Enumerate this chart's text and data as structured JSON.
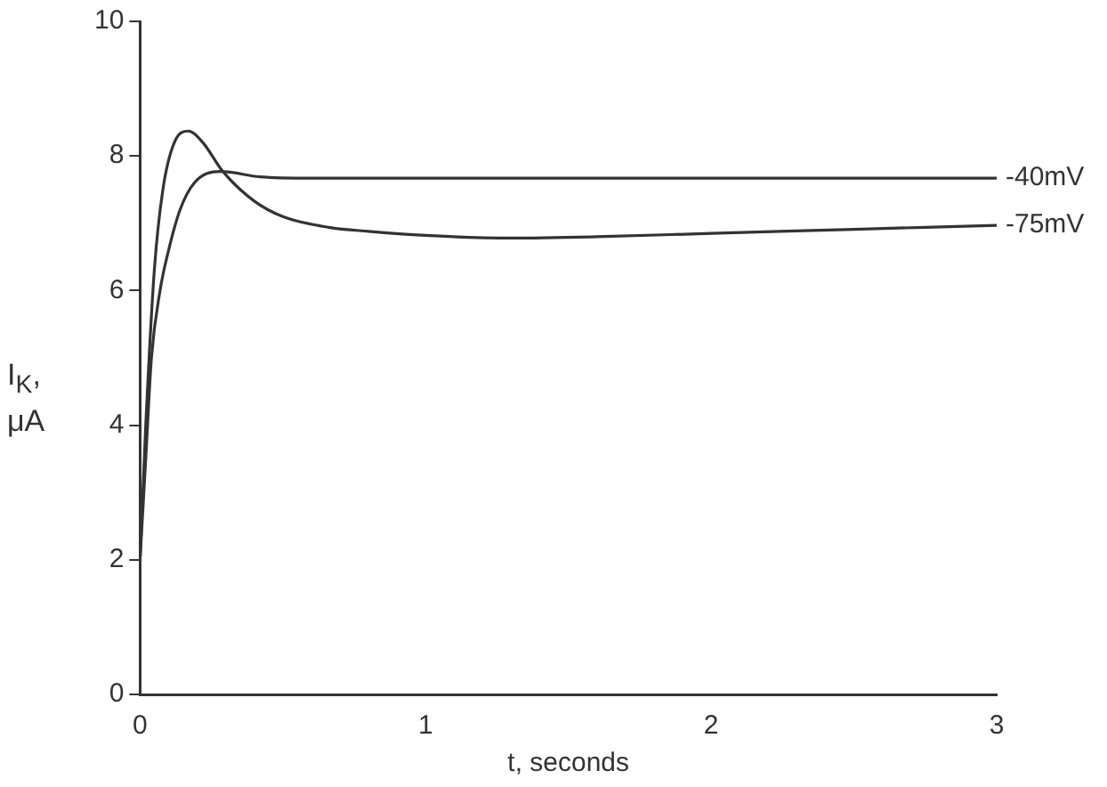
{
  "chart_data": {
    "type": "line",
    "xlabel": "t, seconds",
    "ylabel": "I$_{K}$, μA",
    "xlim": [
      0,
      3
    ],
    "ylim": [
      0,
      10
    ],
    "xticks": [
      0,
      1,
      2,
      3
    ],
    "yticks": [
      0,
      2,
      4,
      6,
      8,
      10
    ],
    "grid": false,
    "legend": false,
    "marker": "none",
    "line_style": "solid",
    "series": [
      {
        "name": "-40mV",
        "color": "#333333",
        "x": [
          0,
          0.02,
          0.04,
          0.07,
          0.1,
          0.14,
          0.19,
          0.28,
          0.42,
          0.6,
          1,
          2,
          3
        ],
        "values": [
          2,
          3.5,
          5,
          6,
          6.6,
          7.2,
          7.6,
          7.77,
          7.69,
          7.67,
          7.67,
          7.67,
          7.67
        ]
      },
      {
        "name": "-75mV",
        "color": "#333333",
        "x": [
          0,
          0.02,
          0.05,
          0.08,
          0.12,
          0.17,
          0.22,
          0.29,
          0.4,
          0.5,
          0.66,
          0.8,
          1,
          1.3,
          1.6,
          2,
          2.5,
          3
        ],
        "values": [
          2,
          4,
          6.3,
          7.5,
          8.2,
          8.37,
          8.2,
          7.77,
          7.33,
          7.1,
          6.94,
          6.88,
          6.82,
          6.78,
          6.8,
          6.85,
          6.91,
          6.97
        ]
      }
    ]
  }
}
